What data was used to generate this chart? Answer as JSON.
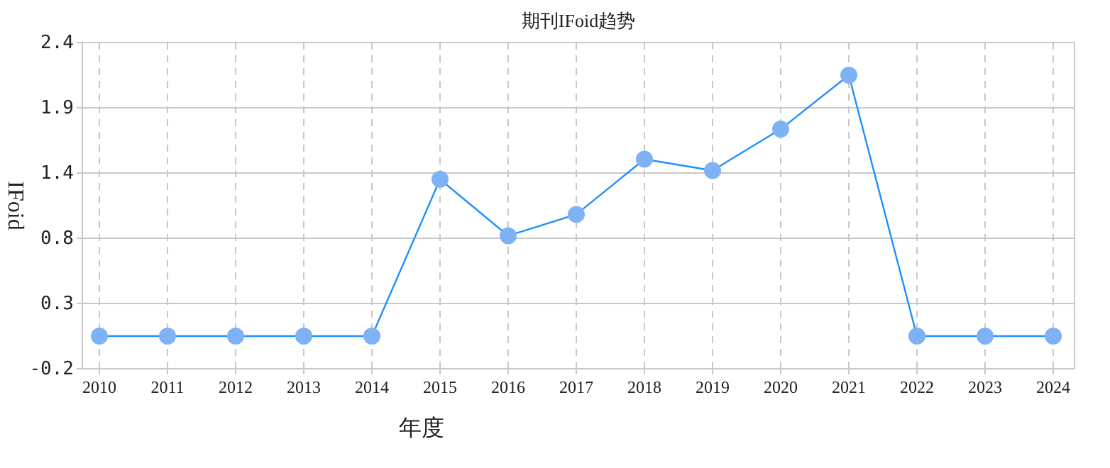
{
  "chart_data": {
    "type": "line",
    "title": "期刊IFoid趋势",
    "xlabel": "年度",
    "ylabel": "IFoid",
    "categories": [
      "2010",
      "2011",
      "2012",
      "2013",
      "2014",
      "2015",
      "2016",
      "2017",
      "2018",
      "2019",
      "2020",
      "2021",
      "2022",
      "2023",
      "2024"
    ],
    "series": [
      {
        "color": "#1e90ff",
        "values": [
          0.06,
          0.06,
          0.06,
          0.06,
          0.06,
          1.31,
          0.86,
          1.03,
          1.47,
          1.38,
          1.71,
          2.14,
          0.06,
          0.06,
          0.06
        ]
      }
    ],
    "ylim": [
      -0.2,
      2.4
    ],
    "yticks": [
      -0.2,
      {
        "value": 0.32,
        "label": "0.3"
      },
      {
        "value": 0.84,
        "label": "0.8"
      },
      {
        "value": 1.36,
        "label": "1.4"
      },
      {
        "value": 1.88,
        "label": "1.9"
      },
      2.4
    ],
    "grid": true,
    "marker": "circle",
    "line_style": "solid"
  }
}
